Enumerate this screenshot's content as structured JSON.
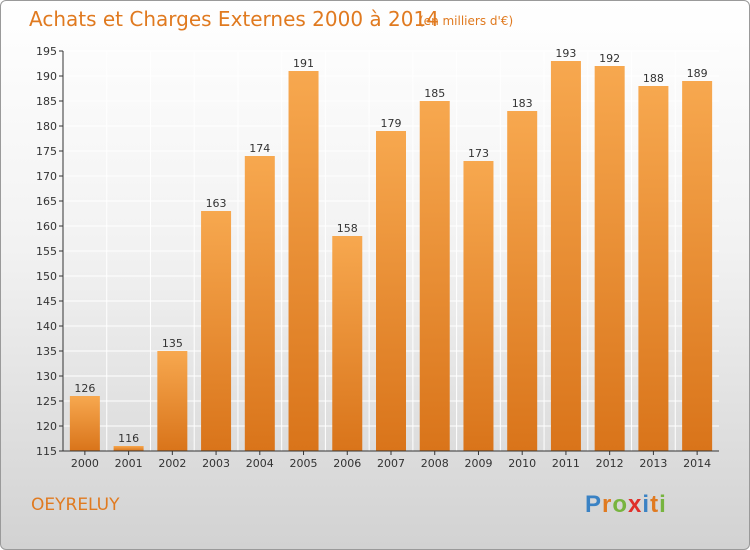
{
  "header": {
    "title": "Achats et Charges Externes 2000 à 2014",
    "unit": "(en milliers d'€)"
  },
  "footer": {
    "town": "OEYRELUY",
    "logo": {
      "letters": [
        "P",
        "r",
        "o",
        "x",
        "i",
        "t",
        "i"
      ],
      "colors": [
        "#3a82c4",
        "#e07a20",
        "#77b43f",
        "#e0302a",
        "#3a82c4",
        "#e07a20",
        "#77b43f"
      ]
    }
  },
  "colors": {
    "bar_light": "#f7a84f",
    "bar_dark": "#d9741a",
    "text": "#e07a20",
    "axis": "#333333",
    "grid": "#ffffff"
  },
  "chart_data": {
    "type": "bar",
    "title": "Achats et Charges Externes 2000 à 2014",
    "categories": [
      "2000",
      "2001",
      "2002",
      "2003",
      "2004",
      "2005",
      "2006",
      "2007",
      "2008",
      "2009",
      "2010",
      "2011",
      "2012",
      "2013",
      "2014"
    ],
    "values": [
      126,
      116,
      135,
      163,
      174,
      191,
      158,
      179,
      185,
      173,
      183,
      193,
      192,
      188,
      189
    ],
    "ylim": [
      115,
      195
    ],
    "yticks": [
      115,
      120,
      125,
      130,
      135,
      140,
      145,
      150,
      155,
      160,
      165,
      170,
      175,
      180,
      185,
      190,
      195
    ],
    "xlabel": "",
    "ylabel": "",
    "grid": true,
    "data_labels": true
  }
}
